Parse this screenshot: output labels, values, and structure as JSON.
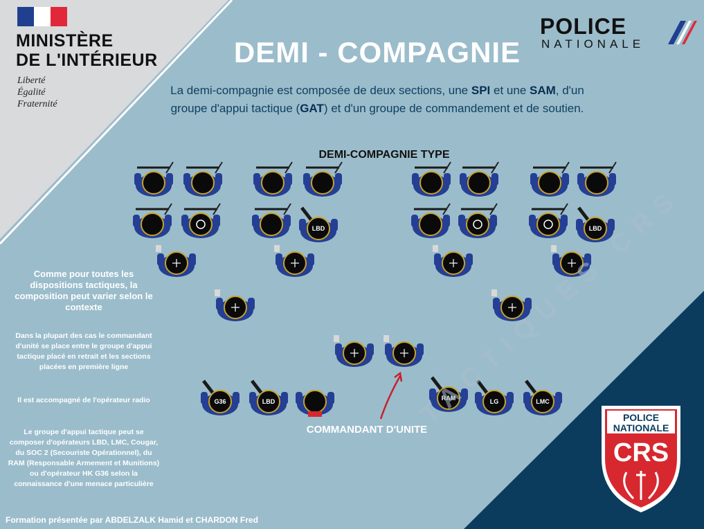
{
  "header": {
    "ministry_line1": "MINISTÈRE",
    "ministry_line2": "DE L'INTÉRIEUR",
    "motto_1": "Liberté",
    "motto_2": "Égalité",
    "motto_3": "Fraternité",
    "police_logo_line1": "POLICE",
    "police_logo_line2": "NATIONALE"
  },
  "title": "DEMI - COMPAGNIE",
  "intro": {
    "p1": "La demi-compagnie est composée de deux sections, une ",
    "spi": "SPI",
    "p2": " et une ",
    "sam": "SAM",
    "p3": ", d'un groupe d'appui tactique (",
    "gat": "GAT",
    "p4": ") et d'un groupe de commandement et de soutien."
  },
  "diagram": {
    "title": "DEMI-COMPAGNIE TYPE",
    "commander_label": "COMMANDANT D'UNITE",
    "figure_labels": {
      "lbd": "LBD",
      "g36": "G36",
      "ram": "RAM",
      "lg": "LG",
      "lmc": "LMC"
    }
  },
  "notes": {
    "note1": "Comme pour toutes les dispositions tactiques, la composition peut varier selon le contexte",
    "note2": "Dans la plupart des cas le commandant d'unité se place entre le groupe d'appui tactique placé en retrait et les sections placées en première ligne",
    "note3": "Il est accompagné de l'opérateur radio",
    "note4": "Le groupe d'appui tactique peut se composer d'opérateurs LBD, LMC, Cougar, du SOC 2 (Secouriste Opérationnel), du RAM (Responsable Armement et Munitions) ou d'opérateur HK G36 selon la connaissance d'une menace particulière"
  },
  "footer": {
    "credit": "Formation présentée par ABDELZALK Hamid et CHARDON Fred",
    "watermark": "TACTIQUES CRS"
  },
  "crs_badge": {
    "line1": "POLICE",
    "line2": "NATIONALE",
    "line3": "CRS"
  },
  "colors": {
    "background": "#9bbccb",
    "dark_navy": "#0b3c5d",
    "light_grey": "#d9dadc",
    "uniform": "#243f93",
    "helmet": "#0a0a0a",
    "crs_red": "#d7282f"
  }
}
